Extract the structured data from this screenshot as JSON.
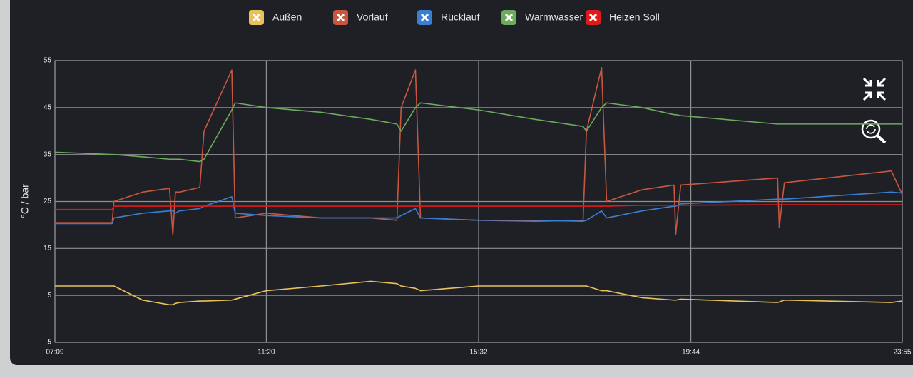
{
  "chart_data": {
    "type": "line",
    "y_label": "°C / bar",
    "x": [
      "07:09",
      "08:17",
      "08:19",
      "08:53",
      "09:25",
      "09:29",
      "09:32",
      "09:37",
      "10:01",
      "10:06",
      "10:39",
      "10:43",
      "11:20",
      "12:25",
      "13:24",
      "13:55",
      "14:00",
      "14:17",
      "14:23",
      "15:32",
      "16:39",
      "17:36",
      "17:40",
      "17:58",
      "18:04",
      "18:46",
      "19:24",
      "19:26",
      "19:32",
      "21:27",
      "21:29",
      "21:35",
      "23:42",
      "23:55"
    ],
    "xlim": [
      "07:09",
      "23:55"
    ],
    "xticks": [
      "07:09",
      "11:20",
      "15:32",
      "19:44",
      "23:55"
    ],
    "ylim": [
      -5,
      55
    ],
    "yticks": [
      -5,
      5,
      15,
      25,
      35,
      45,
      55
    ],
    "grid": true,
    "series": [
      {
        "name": "Außen",
        "color": "#e9c25c",
        "values": [
          7,
          7,
          7,
          4,
          3,
          3,
          3.3,
          3.5,
          3.8,
          3.8,
          4,
          4.2,
          6,
          7,
          8,
          7.5,
          7,
          6.5,
          6,
          7,
          7,
          7,
          7,
          6,
          6,
          4.5,
          4,
          4,
          4.2,
          3.5,
          3.6,
          4,
          3.5,
          3.8
        ]
      },
      {
        "name": "Vorlauf",
        "color": "#c9573f",
        "values": [
          20.5,
          20.5,
          25,
          27,
          27.8,
          18,
          27,
          27,
          28,
          40,
          53,
          21.5,
          22.5,
          21.5,
          21.5,
          21,
          45,
          53,
          21.5,
          21,
          20.8,
          21,
          40,
          53.5,
          25,
          27.5,
          28.5,
          18,
          28.5,
          30,
          19.5,
          29,
          31.5,
          26.5
        ]
      },
      {
        "name": "Rücklauf",
        "color": "#3b7fd4",
        "values": [
          20.3,
          20.3,
          21.5,
          22.5,
          23,
          23,
          22.5,
          23,
          23.5,
          24,
          26,
          22.5,
          22,
          21.5,
          21.5,
          21.5,
          22,
          23.5,
          21.5,
          21,
          21,
          20.8,
          21,
          23,
          21.5,
          23,
          24,
          24,
          24.5,
          25.5,
          25.5,
          25.5,
          27,
          26.8
        ]
      },
      {
        "name": "Warmwasser",
        "color": "#6caa5c",
        "values": [
          35.5,
          35,
          35,
          34.5,
          34,
          34,
          34,
          34,
          33.5,
          34,
          44.5,
          46,
          45,
          44,
          42.5,
          41.5,
          40,
          45,
          46,
          44.5,
          42.5,
          41,
          40,
          45,
          46,
          45,
          43.5,
          43.5,
          43.3,
          41.5,
          41.5,
          41.5,
          41.5,
          41.5
        ]
      },
      {
        "name": "Heizen Soll",
        "color": "#e01a1a",
        "values": [
          23.3,
          23.3,
          24,
          24,
          24,
          24,
          24,
          24,
          24,
          24,
          24,
          24,
          24,
          24,
          24,
          24,
          24,
          24,
          24,
          24,
          24,
          24,
          24,
          24,
          24,
          24.2,
          24.2,
          24.2,
          24.2,
          24.3,
          24.3,
          24.3,
          24.3,
          24.3
        ]
      }
    ]
  }
}
